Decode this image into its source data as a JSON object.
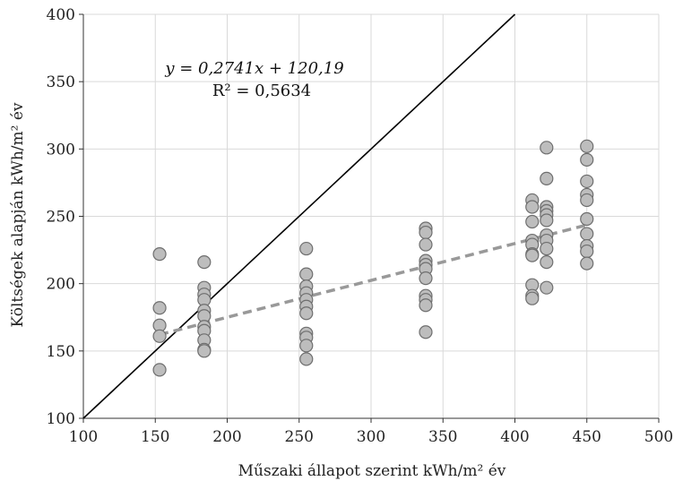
{
  "chart_data": {
    "type": "scatter",
    "xlabel": "Műszaki állapot szerint kWh/m² év",
    "ylabel": "Költségek alapján kWh/m² év",
    "xlim": [
      100,
      500
    ],
    "ylim": [
      100,
      400
    ],
    "x_ticks": [
      "100",
      "150",
      "200",
      "250",
      "300",
      "350",
      "400",
      "450",
      "500"
    ],
    "y_ticks": [
      "100",
      "150",
      "200",
      "250",
      "300",
      "350",
      "400"
    ],
    "grid": true,
    "equation": "y = 0,2741x + 120,19",
    "r_squared": "R² = 0,5634",
    "trendline": {
      "slope": 0.2741,
      "intercept": 120.19,
      "x_range": [
        153,
        450
      ],
      "color": "#999999",
      "style": "dashed"
    },
    "identity_line": {
      "x_range": [
        100,
        400
      ],
      "color": "#000000"
    },
    "points": [
      {
        "x": 153,
        "y": 222
      },
      {
        "x": 153,
        "y": 182
      },
      {
        "x": 153,
        "y": 169
      },
      {
        "x": 153,
        "y": 161
      },
      {
        "x": 153,
        "y": 136
      },
      {
        "x": 184,
        "y": 216
      },
      {
        "x": 184,
        "y": 197
      },
      {
        "x": 184,
        "y": 192
      },
      {
        "x": 184,
        "y": 188
      },
      {
        "x": 184,
        "y": 180
      },
      {
        "x": 184,
        "y": 176
      },
      {
        "x": 184,
        "y": 168
      },
      {
        "x": 184,
        "y": 165
      },
      {
        "x": 184,
        "y": 158
      },
      {
        "x": 184,
        "y": 151
      },
      {
        "x": 184,
        "y": 150
      },
      {
        "x": 255,
        "y": 226
      },
      {
        "x": 255,
        "y": 207
      },
      {
        "x": 255,
        "y": 198
      },
      {
        "x": 255,
        "y": 193
      },
      {
        "x": 255,
        "y": 188
      },
      {
        "x": 255,
        "y": 183
      },
      {
        "x": 255,
        "y": 178
      },
      {
        "x": 255,
        "y": 163
      },
      {
        "x": 255,
        "y": 160
      },
      {
        "x": 255,
        "y": 154
      },
      {
        "x": 255,
        "y": 144
      },
      {
        "x": 338,
        "y": 241
      },
      {
        "x": 338,
        "y": 238
      },
      {
        "x": 338,
        "y": 229
      },
      {
        "x": 338,
        "y": 217
      },
      {
        "x": 338,
        "y": 214
      },
      {
        "x": 338,
        "y": 211
      },
      {
        "x": 338,
        "y": 204
      },
      {
        "x": 338,
        "y": 191
      },
      {
        "x": 338,
        "y": 188
      },
      {
        "x": 338,
        "y": 184
      },
      {
        "x": 338,
        "y": 164
      },
      {
        "x": 412,
        "y": 262
      },
      {
        "x": 412,
        "y": 257
      },
      {
        "x": 412,
        "y": 246
      },
      {
        "x": 412,
        "y": 232
      },
      {
        "x": 412,
        "y": 229
      },
      {
        "x": 412,
        "y": 222
      },
      {
        "x": 412,
        "y": 221
      },
      {
        "x": 412,
        "y": 199
      },
      {
        "x": 412,
        "y": 191
      },
      {
        "x": 412,
        "y": 189
      },
      {
        "x": 422,
        "y": 301
      },
      {
        "x": 422,
        "y": 278
      },
      {
        "x": 422,
        "y": 257
      },
      {
        "x": 422,
        "y": 254
      },
      {
        "x": 422,
        "y": 251
      },
      {
        "x": 422,
        "y": 247
      },
      {
        "x": 422,
        "y": 236
      },
      {
        "x": 422,
        "y": 232
      },
      {
        "x": 422,
        "y": 226
      },
      {
        "x": 422,
        "y": 216
      },
      {
        "x": 422,
        "y": 197
      },
      {
        "x": 450,
        "y": 302
      },
      {
        "x": 450,
        "y": 292
      },
      {
        "x": 450,
        "y": 276
      },
      {
        "x": 450,
        "y": 266
      },
      {
        "x": 450,
        "y": 262
      },
      {
        "x": 450,
        "y": 248
      },
      {
        "x": 450,
        "y": 237
      },
      {
        "x": 450,
        "y": 228
      },
      {
        "x": 450,
        "y": 224
      },
      {
        "x": 450,
        "y": 215
      }
    ]
  }
}
